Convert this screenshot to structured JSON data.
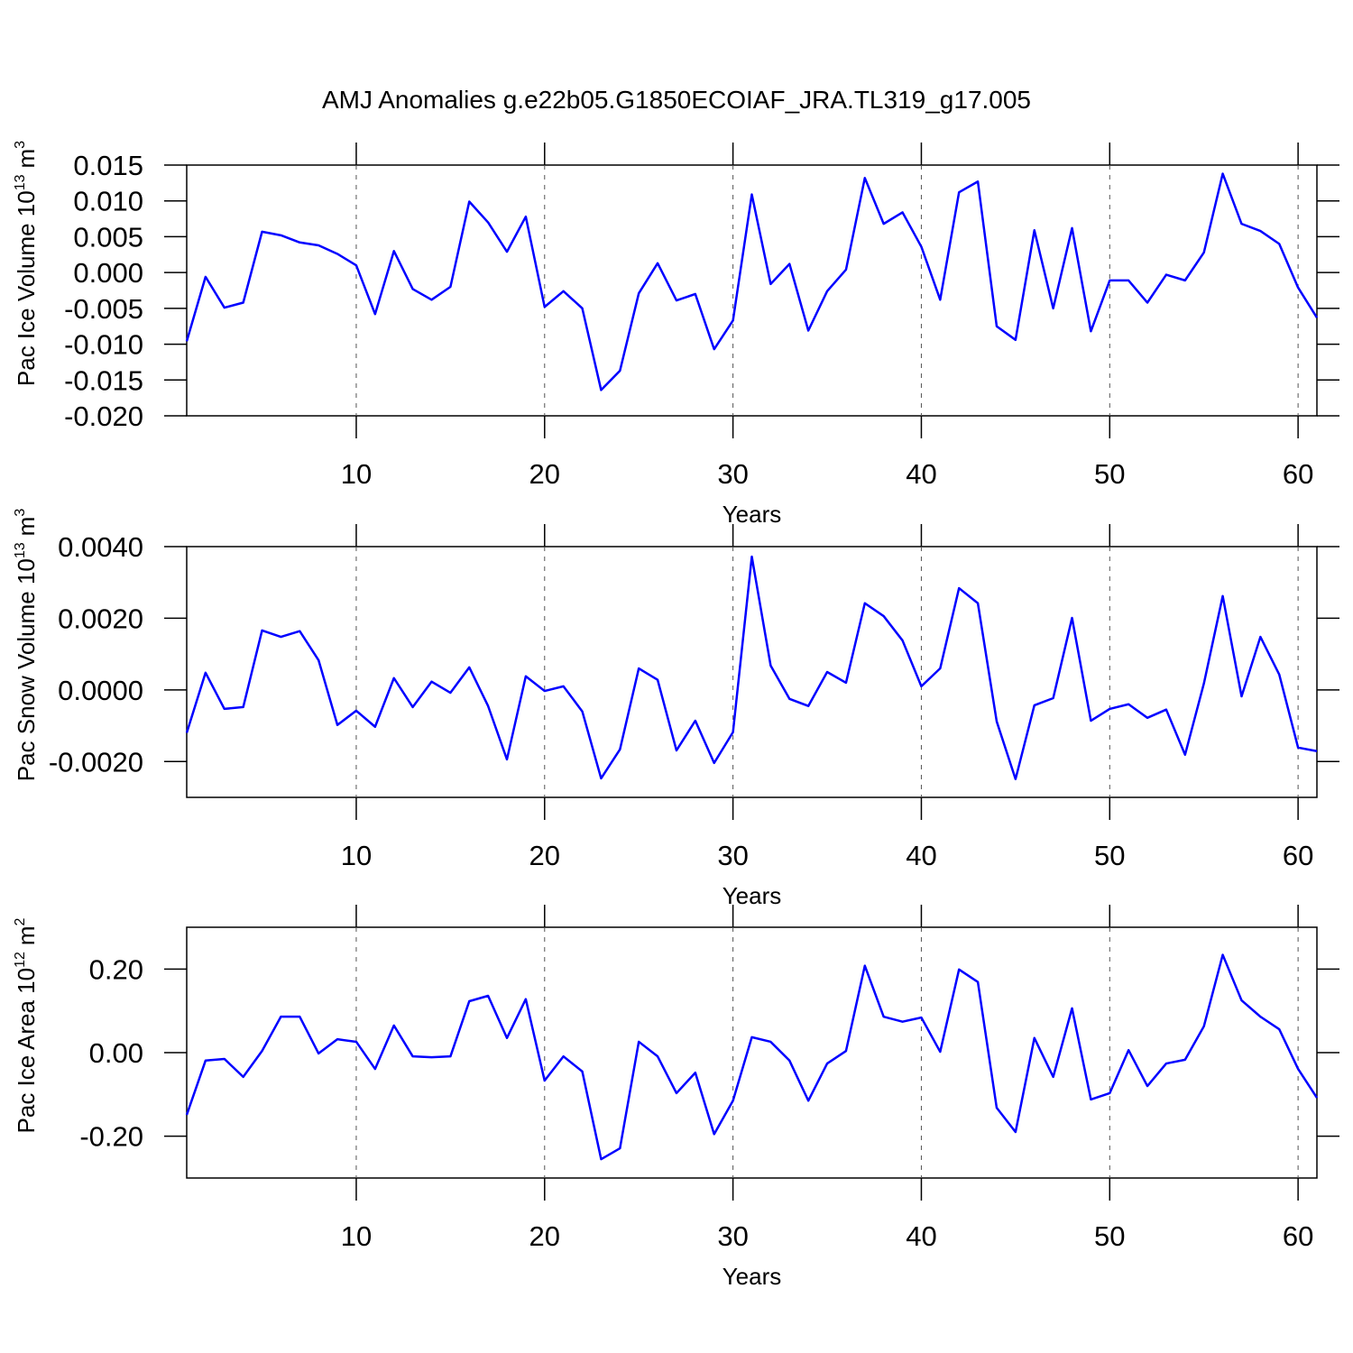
{
  "title": "AMJ Anomalies g.e22b05.G1850ECOIAF_JRA.TL319_g17.005",
  "chart_data": [
    {
      "type": "line",
      "xlabel": "Years",
      "ylabel": [
        "Pac Ice Volume 10",
        "13",
        "m",
        "3"
      ],
      "color": "#0000ff",
      "grid": true,
      "xlim": [
        1,
        61
      ],
      "xticks": [
        10,
        20,
        30,
        40,
        50,
        60
      ],
      "ylim": [
        -0.02,
        0.015
      ],
      "yticks": [
        0.015,
        {
          "value": 0.01,
          "label": "0.010"
        },
        0.005,
        {
          "value": 0,
          "label": "0.000"
        },
        -0.005,
        {
          "value": -0.01,
          "label": "-0.010"
        },
        -0.015,
        {
          "value": -0.02,
          "label": "-0.020"
        }
      ],
      "x": [
        1,
        2,
        3,
        4,
        5,
        6,
        7,
        8,
        9,
        10,
        11,
        12,
        13,
        14,
        15,
        16,
        17,
        18,
        19,
        20,
        21,
        22,
        23,
        24,
        25,
        26,
        27,
        28,
        29,
        30,
        31,
        32,
        33,
        34,
        35,
        36,
        37,
        38,
        39,
        40,
        41,
        42,
        43,
        44,
        45,
        46,
        47,
        48,
        49,
        50,
        51,
        52,
        53,
        54,
        55,
        56,
        57,
        58,
        59,
        60,
        61
      ],
      "values": [
        -0.0096,
        -0.0006,
        -0.0049,
        -0.0042,
        0.0057,
        0.0052,
        0.0042,
        0.0038,
        0.0026,
        0.001,
        -0.0058,
        0.003,
        -0.0023,
        -0.0038,
        -0.002,
        0.0099,
        0.007,
        0.0029,
        0.0078,
        -0.0048,
        -0.0026,
        -0.005,
        -0.0164,
        -0.0137,
        -0.0029,
        0.0013,
        -0.0039,
        -0.003,
        -0.0107,
        -0.0067,
        0.0109,
        -0.0016,
        0.0012,
        -0.0081,
        -0.0026,
        0.0004,
        0.0132,
        0.0068,
        0.0084,
        0.0036,
        -0.0038,
        0.0112,
        0.0127,
        -0.0075,
        -0.0094,
        0.0059,
        -0.005,
        0.0062,
        -0.0082,
        -0.0011,
        -0.0011,
        -0.0042,
        -0.0003,
        -0.0011,
        0.0028,
        0.0138,
        0.0068,
        0.0058,
        0.004,
        -0.0021,
        -0.0063
      ]
    },
    {
      "type": "line",
      "xlabel": "Years",
      "ylabel": [
        "Pac Snow Volume 10",
        "13",
        "m",
        "3"
      ],
      "color": "#0000ff",
      "grid": true,
      "xlim": [
        1,
        61
      ],
      "xticks": [
        10,
        20,
        30,
        40,
        50,
        60
      ],
      "ylim": [
        -0.003,
        0.004
      ],
      "yticks": [
        {
          "value": 0.004,
          "label": "0.0040"
        },
        {
          "value": 0.002,
          "label": "0.0020"
        },
        {
          "value": 0,
          "label": "0.0000"
        },
        {
          "value": -0.002,
          "label": "-0.0020"
        }
      ],
      "x": [
        1,
        2,
        3,
        4,
        5,
        6,
        7,
        8,
        9,
        10,
        11,
        12,
        13,
        14,
        15,
        16,
        17,
        18,
        19,
        20,
        21,
        22,
        23,
        24,
        25,
        26,
        27,
        28,
        29,
        30,
        31,
        32,
        33,
        34,
        35,
        36,
        37,
        38,
        39,
        40,
        41,
        42,
        43,
        44,
        45,
        46,
        47,
        48,
        49,
        50,
        51,
        52,
        53,
        54,
        55,
        56,
        57,
        58,
        59,
        60,
        61
      ],
      "values": [
        -0.0012,
        0.00048,
        -0.00053,
        -0.00048,
        0.00166,
        0.00148,
        0.00164,
        0.00083,
        -0.00098,
        -0.00058,
        -0.00103,
        0.00033,
        -0.00048,
        0.00023,
        -8e-05,
        0.00063,
        -0.00045,
        -0.00194,
        0.00038,
        -3e-05,
        0.0001,
        -0.0006,
        -0.00247,
        -0.00166,
        0.0006,
        0.00028,
        -0.00169,
        -0.00086,
        -0.00204,
        -0.00118,
        0.00372,
        0.00068,
        -0.00025,
        -0.00045,
        0.0005,
        0.0002,
        0.00242,
        0.00206,
        0.00138,
        0.0001,
        0.0006,
        0.00284,
        0.00242,
        -0.00088,
        -0.00249,
        -0.00043,
        -0.00023,
        0.00201,
        -0.00086,
        -0.00053,
        -0.0004,
        -0.00078,
        -0.00055,
        -0.00181,
        0.00018,
        0.00262,
        -0.00018,
        0.00148,
        0.00043,
        -0.00161,
        -0.00171
      ]
    },
    {
      "type": "line",
      "xlabel": "Years",
      "ylabel": [
        "Pac Ice Area 10",
        "12",
        "m",
        "2"
      ],
      "color": "#0000ff",
      "grid": true,
      "xlim": [
        1,
        61
      ],
      "xticks": [
        10,
        20,
        30,
        40,
        50,
        60
      ],
      "ylim": [
        -0.3,
        0.3
      ],
      "yticks": [
        {
          "value": 0.2,
          "label": "0.20"
        },
        {
          "value": 0,
          "label": "0.00"
        },
        {
          "value": -0.2,
          "label": "-0.20"
        }
      ],
      "x": [
        1,
        2,
        3,
        4,
        5,
        6,
        7,
        8,
        9,
        10,
        11,
        12,
        13,
        14,
        15,
        16,
        17,
        18,
        19,
        20,
        21,
        22,
        23,
        24,
        25,
        26,
        27,
        28,
        29,
        30,
        31,
        32,
        33,
        34,
        35,
        36,
        37,
        38,
        39,
        40,
        41,
        42,
        43,
        44,
        45,
        46,
        47,
        48,
        49,
        50,
        51,
        52,
        53,
        54,
        55,
        56,
        57,
        58,
        59,
        60,
        61
      ],
      "values": [
        -0.149,
        -0.019,
        -0.015,
        -0.058,
        0.004,
        0.086,
        0.086,
        -0.002,
        0.032,
        0.026,
        -0.039,
        0.065,
        -0.009,
        -0.011,
        -0.009,
        0.123,
        0.136,
        0.035,
        0.128,
        -0.067,
        -0.009,
        -0.045,
        -0.255,
        -0.229,
        0.026,
        -0.009,
        -0.097,
        -0.048,
        -0.195,
        -0.115,
        0.037,
        0.026,
        -0.019,
        -0.115,
        -0.026,
        0.004,
        0.208,
        0.086,
        0.074,
        0.084,
        0.002,
        0.199,
        0.169,
        -0.132,
        -0.19,
        0.035,
        -0.058,
        0.106,
        -0.112,
        -0.097,
        0.006,
        -0.08,
        -0.026,
        -0.017,
        0.063,
        0.234,
        0.125,
        0.086,
        0.056,
        -0.039,
        -0.108
      ]
    }
  ]
}
